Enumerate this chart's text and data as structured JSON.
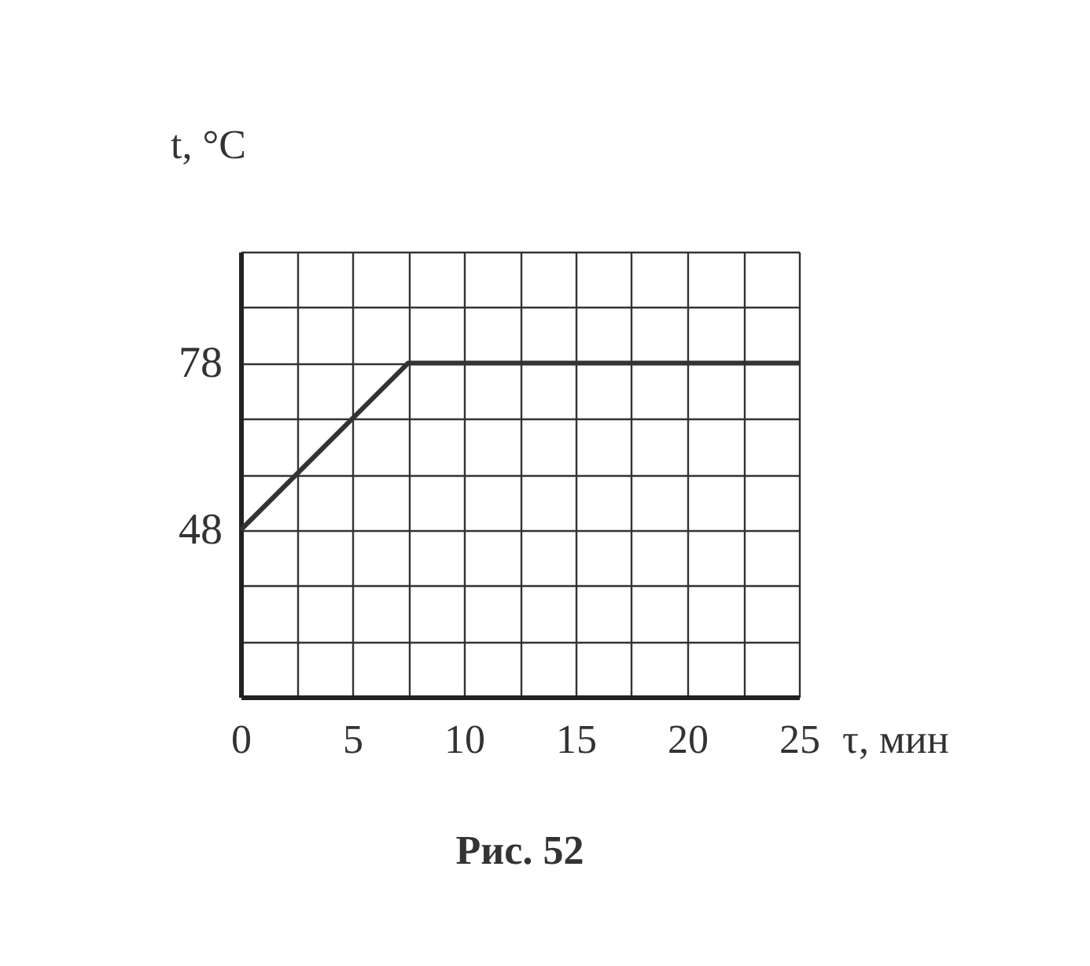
{
  "chart_data": {
    "type": "line",
    "xlabel": "τ, мин",
    "ylabel": "t, °C",
    "annotations": [
      "Рис. 52"
    ],
    "x": [
      0,
      7.5,
      25
    ],
    "series": [
      {
        "color": "#333333",
        "values": [
          48,
          78,
          78
        ]
      }
    ],
    "xlim": [
      0,
      25
    ],
    "ylim": [
      18,
      98
    ],
    "xticks": [
      0,
      {
        "value": 2.5,
        "label": null
      },
      5,
      {
        "value": 7.5,
        "label": null
      },
      10,
      {
        "value": 12.5,
        "label": null
      },
      15,
      {
        "value": 17.5,
        "label": null
      },
      20,
      {
        "value": 22.5,
        "label": null
      },
      25
    ],
    "yticks": [
      {
        "value": 18,
        "label": null
      },
      {
        "value": 28,
        "label": null
      },
      {
        "value": 38,
        "label": null
      },
      48,
      {
        "value": 58,
        "label": null
      },
      {
        "value": 68,
        "label": null
      },
      78,
      {
        "value": 88,
        "label": null
      },
      {
        "value": 98,
        "label": null
      }
    ],
    "grid": true,
    "marker": "none",
    "line_style": "solid"
  }
}
